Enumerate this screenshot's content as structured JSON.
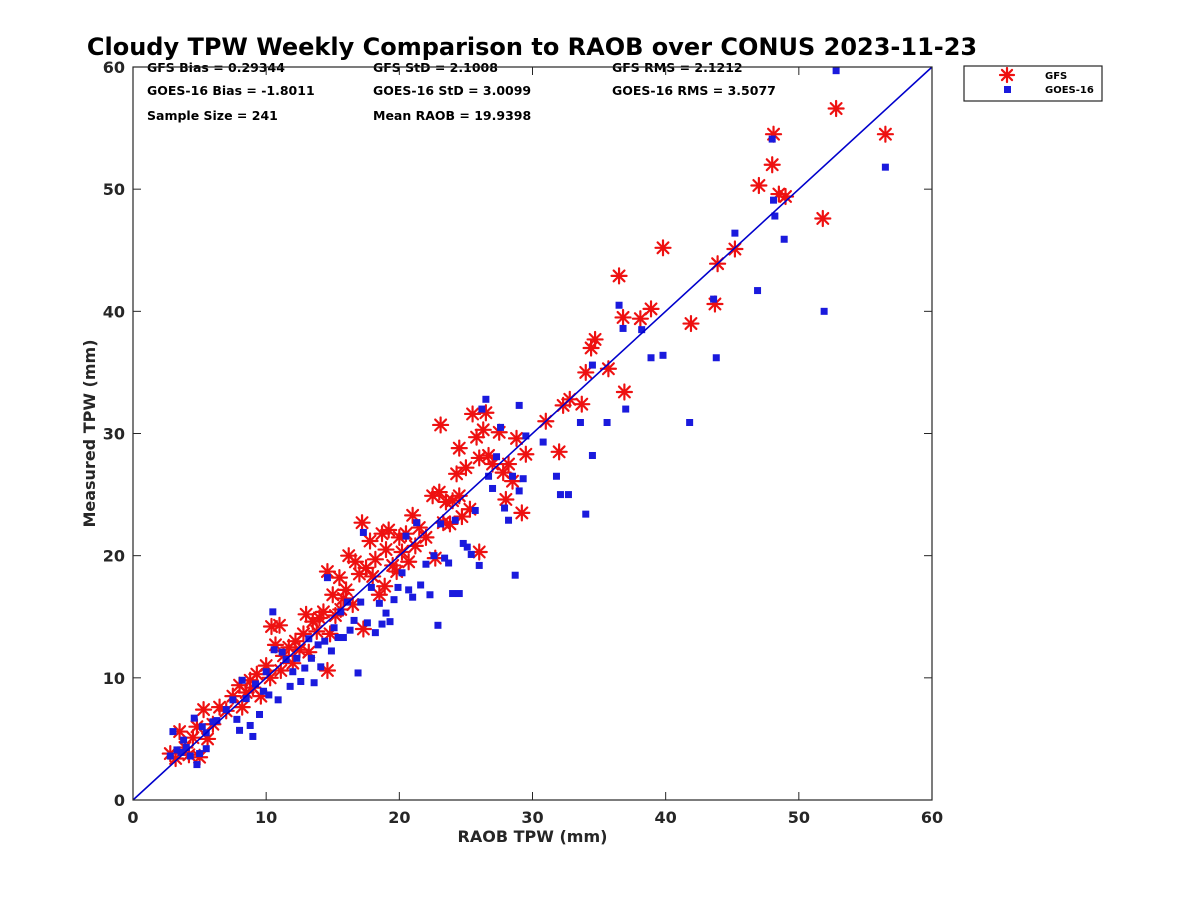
{
  "chart_data": {
    "type": "scatter",
    "title": "Cloudy TPW Weekly Comparison to RAOB over CONUS 2023-11-23",
    "xlabel": "RAOB TPW (mm)",
    "ylabel": "Measured TPW (mm)",
    "xlim": [
      0,
      60
    ],
    "ylim": [
      0,
      60
    ],
    "xticks": [
      "0",
      "10",
      "20",
      "30",
      "40",
      "50",
      "60"
    ],
    "yticks": [
      "0",
      "10",
      "20",
      "30",
      "40",
      "50",
      "60"
    ],
    "grid": false,
    "legend_position": "outside top-right",
    "stats": [
      "GFS Bias = 0.29344",
      "GFS StD = 2.1008",
      "GFS RMS = 2.1212",
      "GOES-16 Bias = -1.8011",
      "GOES-16 StD = 3.0099",
      "GOES-16 RMS = 3.5077",
      "Sample Size = 241",
      "Mean RAOB = 19.9398"
    ],
    "reference_line": {
      "from": [
        0,
        0
      ],
      "to": [
        60,
        60
      ],
      "color": "#0000cc"
    },
    "series": [
      {
        "name": "GFS",
        "marker": "asterisk",
        "color": "#ee1111",
        "points": [
          [
            2.8,
            3.8
          ],
          [
            3.2,
            3.4
          ],
          [
            3.5,
            5.6
          ],
          [
            3.9,
            4.3
          ],
          [
            4.2,
            3.7
          ],
          [
            4.5,
            5.1
          ],
          [
            4.8,
            6.0
          ],
          [
            5.0,
            3.5
          ],
          [
            5.3,
            7.4
          ],
          [
            5.6,
            5.0
          ],
          [
            6.0,
            6.2
          ],
          [
            6.5,
            7.6
          ],
          [
            7.0,
            7.3
          ],
          [
            7.5,
            8.5
          ],
          [
            8.0,
            9.4
          ],
          [
            8.2,
            7.6
          ],
          [
            8.5,
            8.8
          ],
          [
            8.8,
            9.8
          ],
          [
            9.0,
            9.2
          ],
          [
            9.3,
            10.3
          ],
          [
            9.6,
            8.5
          ],
          [
            10.0,
            11.0
          ],
          [
            10.3,
            10.0
          ],
          [
            10.4,
            14.2
          ],
          [
            10.7,
            12.7
          ],
          [
            11.0,
            14.3
          ],
          [
            11.1,
            10.6
          ],
          [
            11.3,
            11.8
          ],
          [
            11.7,
            12.5
          ],
          [
            12.0,
            11.2
          ],
          [
            12.2,
            13.0
          ],
          [
            12.5,
            12.3
          ],
          [
            12.8,
            13.6
          ],
          [
            13.0,
            15.2
          ],
          [
            13.2,
            12.1
          ],
          [
            13.5,
            14.6
          ],
          [
            13.8,
            13.8
          ],
          [
            14.0,
            14.9
          ],
          [
            14.3,
            15.4
          ],
          [
            14.6,
            10.6
          ],
          [
            14.6,
            18.7
          ],
          [
            14.8,
            13.6
          ],
          [
            15.0,
            16.8
          ],
          [
            15.2,
            15.1
          ],
          [
            15.5,
            18.2
          ],
          [
            15.6,
            15.6
          ],
          [
            15.8,
            16.5
          ],
          [
            16.0,
            17.2
          ],
          [
            16.2,
            20.0
          ],
          [
            16.5,
            16.0
          ],
          [
            16.7,
            19.5
          ],
          [
            17.0,
            18.5
          ],
          [
            17.2,
            22.7
          ],
          [
            17.3,
            14.0
          ],
          [
            17.5,
            19.0
          ],
          [
            17.8,
            21.2
          ],
          [
            18.0,
            18.3
          ],
          [
            18.2,
            19.7
          ],
          [
            18.5,
            16.8
          ],
          [
            18.7,
            21.8
          ],
          [
            18.9,
            17.5
          ],
          [
            19.0,
            20.5
          ],
          [
            19.2,
            22.1
          ],
          [
            19.5,
            19.2
          ],
          [
            19.8,
            18.7
          ],
          [
            20.0,
            21.5
          ],
          [
            20.2,
            20.3
          ],
          [
            20.5,
            21.8
          ],
          [
            20.7,
            19.5
          ],
          [
            21.0,
            23.3
          ],
          [
            21.2,
            20.8
          ],
          [
            21.5,
            22.3
          ],
          [
            22.0,
            21.5
          ],
          [
            22.5,
            24.9
          ],
          [
            22.7,
            19.8
          ],
          [
            23.0,
            25.2
          ],
          [
            23.1,
            30.7
          ],
          [
            23.3,
            22.7
          ],
          [
            23.5,
            24.4
          ],
          [
            23.8,
            22.6
          ],
          [
            24.0,
            24.5
          ],
          [
            24.3,
            26.7
          ],
          [
            24.5,
            24.9
          ],
          [
            24.5,
            28.8
          ],
          [
            24.7,
            23.2
          ],
          [
            25.0,
            27.2
          ],
          [
            25.3,
            23.8
          ],
          [
            25.5,
            31.6
          ],
          [
            25.8,
            29.7
          ],
          [
            26.0,
            28.0
          ],
          [
            26.0,
            20.3
          ],
          [
            26.3,
            30.3
          ],
          [
            26.5,
            31.7
          ],
          [
            26.7,
            28.2
          ],
          [
            27.0,
            27.5
          ],
          [
            27.5,
            30.1
          ],
          [
            27.8,
            26.8
          ],
          [
            28.0,
            24.6
          ],
          [
            28.2,
            27.5
          ],
          [
            28.5,
            26.1
          ],
          [
            28.8,
            29.6
          ],
          [
            29.2,
            23.5
          ],
          [
            29.5,
            28.3
          ],
          [
            31.0,
            31.0
          ],
          [
            32.0,
            28.5
          ],
          [
            32.3,
            32.3
          ],
          [
            32.8,
            32.8
          ],
          [
            33.7,
            32.4
          ],
          [
            34.0,
            35.0
          ],
          [
            34.4,
            37.0
          ],
          [
            34.7,
            37.7
          ],
          [
            35.7,
            35.3
          ],
          [
            36.5,
            42.9
          ],
          [
            36.8,
            39.5
          ],
          [
            36.9,
            33.4
          ],
          [
            38.1,
            39.4
          ],
          [
            38.9,
            40.2
          ],
          [
            39.8,
            45.2
          ],
          [
            41.9,
            39.0
          ],
          [
            43.7,
            40.6
          ],
          [
            43.9,
            43.9
          ],
          [
            45.2,
            45.1
          ],
          [
            47.0,
            50.3
          ],
          [
            48.0,
            52.0
          ],
          [
            48.1,
            54.5
          ],
          [
            48.5,
            49.6
          ],
          [
            49.0,
            49.4
          ],
          [
            51.8,
            47.6
          ],
          [
            52.8,
            56.6
          ],
          [
            56.5,
            54.5
          ]
        ]
      },
      {
        "name": "GOES-16",
        "marker": "square",
        "color": "#1a1add",
        "points": [
          [
            2.8,
            3.6
          ],
          [
            3.0,
            5.6
          ],
          [
            3.3,
            4.1
          ],
          [
            3.6,
            3.9
          ],
          [
            3.8,
            4.9
          ],
          [
            4.0,
            4.3
          ],
          [
            4.3,
            3.6
          ],
          [
            4.6,
            6.7
          ],
          [
            4.8,
            2.9
          ],
          [
            5.0,
            3.8
          ],
          [
            5.2,
            6.0
          ],
          [
            5.5,
            5.5
          ],
          [
            5.5,
            4.2
          ],
          [
            6.0,
            6.4
          ],
          [
            6.3,
            6.5
          ],
          [
            7.0,
            7.4
          ],
          [
            7.5,
            8.2
          ],
          [
            7.8,
            6.6
          ],
          [
            8.0,
            5.7
          ],
          [
            8.2,
            9.8
          ],
          [
            8.5,
            8.3
          ],
          [
            8.8,
            6.1
          ],
          [
            9.0,
            5.2
          ],
          [
            9.2,
            9.5
          ],
          [
            9.5,
            7.0
          ],
          [
            9.8,
            8.9
          ],
          [
            10.0,
            10.5
          ],
          [
            10.2,
            8.6
          ],
          [
            10.5,
            15.4
          ],
          [
            10.6,
            12.3
          ],
          [
            10.9,
            8.2
          ],
          [
            11.2,
            12.1
          ],
          [
            11.5,
            11.5
          ],
          [
            11.8,
            9.3
          ],
          [
            12.0,
            10.5
          ],
          [
            12.3,
            11.6
          ],
          [
            12.6,
            9.7
          ],
          [
            12.9,
            10.8
          ],
          [
            13.2,
            13.2
          ],
          [
            13.4,
            11.6
          ],
          [
            13.6,
            9.6
          ],
          [
            13.9,
            12.7
          ],
          [
            14.1,
            10.9
          ],
          [
            14.4,
            13.0
          ],
          [
            14.6,
            18.2
          ],
          [
            14.9,
            12.2
          ],
          [
            15.1,
            14.1
          ],
          [
            15.4,
            13.3
          ],
          [
            15.6,
            15.4
          ],
          [
            15.8,
            13.3
          ],
          [
            16.1,
            16.2
          ],
          [
            16.3,
            13.9
          ],
          [
            16.6,
            14.7
          ],
          [
            16.9,
            10.4
          ],
          [
            17.1,
            16.2
          ],
          [
            17.3,
            21.9
          ],
          [
            17.6,
            14.5
          ],
          [
            17.9,
            17.4
          ],
          [
            18.2,
            13.7
          ],
          [
            18.5,
            16.1
          ],
          [
            18.7,
            14.4
          ],
          [
            19.0,
            15.3
          ],
          [
            19.3,
            14.6
          ],
          [
            19.6,
            16.4
          ],
          [
            19.9,
            17.4
          ],
          [
            20.2,
            18.6
          ],
          [
            20.5,
            21.6
          ],
          [
            20.7,
            17.2
          ],
          [
            21.0,
            16.6
          ],
          [
            21.3,
            22.7
          ],
          [
            21.6,
            17.6
          ],
          [
            22.0,
            19.3
          ],
          [
            22.3,
            16.8
          ],
          [
            22.6,
            20.0
          ],
          [
            22.9,
            14.3
          ],
          [
            23.1,
            22.6
          ],
          [
            23.4,
            19.8
          ],
          [
            23.7,
            19.4
          ],
          [
            24.0,
            16.9
          ],
          [
            24.2,
            22.9
          ],
          [
            24.5,
            16.9
          ],
          [
            24.8,
            21.0
          ],
          [
            25.1,
            20.7
          ],
          [
            25.4,
            20.1
          ],
          [
            25.7,
            23.7
          ],
          [
            26.0,
            19.2
          ],
          [
            26.2,
            32.0
          ],
          [
            26.5,
            32.8
          ],
          [
            26.7,
            26.5
          ],
          [
            27.0,
            25.5
          ],
          [
            27.3,
            28.1
          ],
          [
            27.6,
            30.5
          ],
          [
            27.9,
            23.9
          ],
          [
            28.2,
            22.9
          ],
          [
            28.5,
            26.5
          ],
          [
            28.7,
            18.4
          ],
          [
            29.0,
            32.3
          ],
          [
            29.0,
            25.3
          ],
          [
            29.3,
            26.3
          ],
          [
            29.5,
            29.8
          ],
          [
            30.8,
            29.3
          ],
          [
            31.8,
            26.5
          ],
          [
            32.1,
            25.0
          ],
          [
            32.7,
            25.0
          ],
          [
            33.6,
            30.9
          ],
          [
            34.0,
            23.4
          ],
          [
            34.5,
            28.2
          ],
          [
            34.5,
            35.6
          ],
          [
            35.6,
            30.9
          ],
          [
            36.5,
            40.5
          ],
          [
            36.8,
            38.6
          ],
          [
            37.0,
            32.0
          ],
          [
            38.2,
            38.5
          ],
          [
            38.9,
            36.2
          ],
          [
            39.8,
            36.4
          ],
          [
            41.8,
            30.9
          ],
          [
            43.6,
            41.0
          ],
          [
            43.8,
            36.2
          ],
          [
            45.2,
            46.4
          ],
          [
            46.9,
            41.7
          ],
          [
            48.0,
            54.1
          ],
          [
            48.1,
            49.1
          ],
          [
            48.2,
            47.8
          ],
          [
            48.9,
            45.9
          ],
          [
            51.9,
            40.0
          ],
          [
            52.8,
            59.7
          ],
          [
            56.5,
            51.8
          ]
        ]
      }
    ]
  }
}
